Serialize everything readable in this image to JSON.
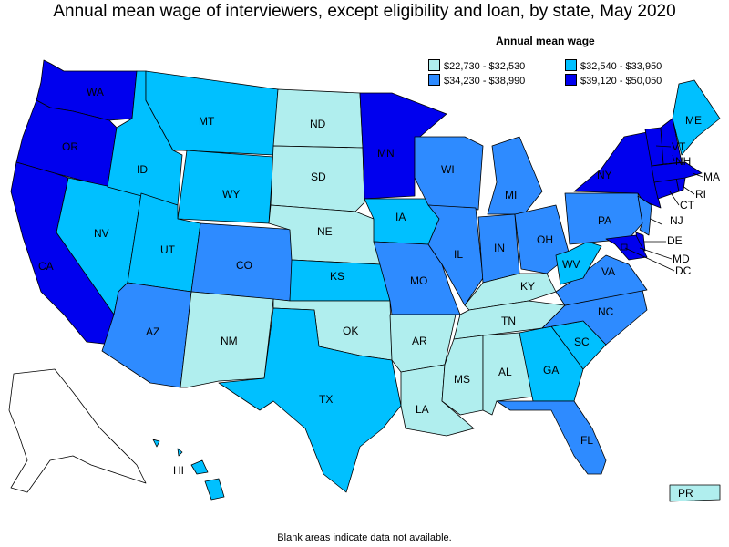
{
  "title": "Annual mean wage of interviewers, except eligibility and loan, by state, May 2020",
  "legend": {
    "title": "Annual mean wage",
    "items": [
      {
        "label": "$22,730 - $32,530",
        "color": "#b0eeee"
      },
      {
        "label": "$32,540 - $33,950",
        "color": "#00c0ff"
      },
      {
        "label": "$34,230 - $38,990",
        "color": "#2e8bff"
      },
      {
        "label": "$39,120 - $50,050",
        "color": "#0000ee"
      }
    ]
  },
  "footnote": "Blank areas indicate data not available.",
  "states": {
    "WA": 3,
    "OR": 3,
    "CA": 3,
    "NV": 1,
    "ID": 1,
    "MT": 1,
    "WY": 1,
    "UT": 1,
    "AZ": 2,
    "CO": 2,
    "NM": 0,
    "ND": 0,
    "SD": 0,
    "NE": 0,
    "KS": 1,
    "OK": 0,
    "TX": 1,
    "MN": 3,
    "IA": 1,
    "MO": 2,
    "AR": 0,
    "LA": 0,
    "WI": 2,
    "IL": 2,
    "MI": 2,
    "IN": 2,
    "OH": 2,
    "KY": 0,
    "TN": 0,
    "MS": 0,
    "AL": 0,
    "GA": 1,
    "FL": 2,
    "SC": 1,
    "NC": 2,
    "VA": 2,
    "WV": 1,
    "PA": 2,
    "NY": 3,
    "VT": 3,
    "NH": 3,
    "ME": 1,
    "MA": 3,
    "RI": 3,
    "CT": 3,
    "NJ": 2,
    "DE": 3,
    "MD": 3,
    "DC": 3,
    "HI": 1,
    "PR": 0
  }
}
